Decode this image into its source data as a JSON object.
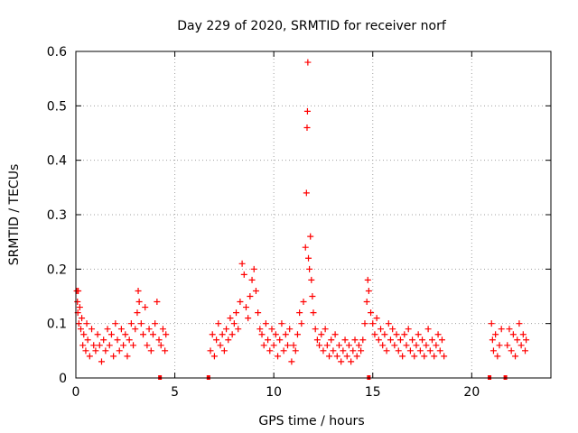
{
  "chart_data": {
    "type": "scatter",
    "title": "Day 229 of 2020, SRMTID for receiver norf",
    "xlabel": "GPS time / hours",
    "ylabel": "SRMTID / TECUs",
    "xlim": [
      0,
      24
    ],
    "ylim": [
      0,
      0.6
    ],
    "xticks": [
      0,
      5,
      10,
      15,
      20
    ],
    "yticks": [
      0,
      0.1,
      0.2,
      0.3,
      0.4,
      0.5,
      0.6
    ],
    "xtick_labels": [
      "0",
      "5",
      "10",
      "15",
      "20"
    ],
    "ytick_labels": [
      "0",
      "0.1",
      "0.2",
      "0.3",
      "0.4",
      "0.5",
      "0.6"
    ],
    "grid": true,
    "marker": "+",
    "marker_color": "#ff0000",
    "series": [
      {
        "name": "SRMTID",
        "points": [
          [
            0.05,
            0.16
          ],
          [
            0.08,
            0.14
          ],
          [
            0.1,
            0.12
          ],
          [
            0.12,
            0.16
          ],
          [
            0.15,
            0.1
          ],
          [
            0.2,
            0.13
          ],
          [
            0.25,
            0.09
          ],
          [
            0.3,
            0.11
          ],
          [
            0.35,
            0.06
          ],
          [
            0.4,
            0.08
          ],
          [
            0.5,
            0.05
          ],
          [
            0.55,
            0.1
          ],
          [
            0.6,
            0.07
          ],
          [
            0.7,
            0.04
          ],
          [
            0.8,
            0.09
          ],
          [
            0.9,
            0.06
          ],
          [
            1.0,
            0.05
          ],
          [
            1.1,
            0.08
          ],
          [
            1.2,
            0.06
          ],
          [
            1.3,
            0.03
          ],
          [
            1.4,
            0.07
          ],
          [
            1.5,
            0.05
          ],
          [
            1.6,
            0.09
          ],
          [
            1.7,
            0.06
          ],
          [
            1.8,
            0.08
          ],
          [
            1.9,
            0.04
          ],
          [
            2.0,
            0.1
          ],
          [
            2.1,
            0.07
          ],
          [
            2.2,
            0.05
          ],
          [
            2.3,
            0.09
          ],
          [
            2.4,
            0.06
          ],
          [
            2.5,
            0.08
          ],
          [
            2.6,
            0.04
          ],
          [
            2.7,
            0.07
          ],
          [
            2.8,
            0.1
          ],
          [
            2.9,
            0.06
          ],
          [
            3.0,
            0.09
          ],
          [
            3.1,
            0.12
          ],
          [
            3.15,
            0.16
          ],
          [
            3.2,
            0.14
          ],
          [
            3.3,
            0.1
          ],
          [
            3.4,
            0.08
          ],
          [
            3.5,
            0.13
          ],
          [
            3.6,
            0.06
          ],
          [
            3.7,
            0.09
          ],
          [
            3.8,
            0.05
          ],
          [
            3.9,
            0.08
          ],
          [
            4.0,
            0.1
          ],
          [
            4.1,
            0.14
          ],
          [
            4.2,
            0.07
          ],
          [
            4.3,
            0.06
          ],
          [
            4.4,
            0.09
          ],
          [
            4.5,
            0.05
          ],
          [
            4.55,
            0.08
          ],
          [
            4.25,
            0.0
          ],
          [
            6.7,
            0.0
          ],
          [
            6.8,
            0.05
          ],
          [
            6.9,
            0.08
          ],
          [
            7.0,
            0.04
          ],
          [
            7.1,
            0.07
          ],
          [
            7.2,
            0.1
          ],
          [
            7.3,
            0.06
          ],
          [
            7.4,
            0.08
          ],
          [
            7.5,
            0.05
          ],
          [
            7.6,
            0.09
          ],
          [
            7.7,
            0.07
          ],
          [
            7.8,
            0.11
          ],
          [
            7.9,
            0.08
          ],
          [
            8.0,
            0.1
          ],
          [
            8.1,
            0.12
          ],
          [
            8.2,
            0.09
          ],
          [
            8.3,
            0.14
          ],
          [
            8.4,
            0.21
          ],
          [
            8.5,
            0.19
          ],
          [
            8.6,
            0.13
          ],
          [
            8.7,
            0.11
          ],
          [
            8.8,
            0.15
          ],
          [
            8.9,
            0.18
          ],
          [
            9.0,
            0.2
          ],
          [
            9.1,
            0.16
          ],
          [
            9.2,
            0.12
          ],
          [
            9.3,
            0.09
          ],
          [
            9.4,
            0.08
          ],
          [
            9.5,
            0.06
          ],
          [
            9.6,
            0.1
          ],
          [
            9.7,
            0.07
          ],
          [
            9.8,
            0.05
          ],
          [
            9.9,
            0.09
          ],
          [
            10.0,
            0.06
          ],
          [
            10.1,
            0.08
          ],
          [
            10.2,
            0.04
          ],
          [
            10.3,
            0.07
          ],
          [
            10.4,
            0.1
          ],
          [
            10.5,
            0.05
          ],
          [
            10.6,
            0.08
          ],
          [
            10.7,
            0.06
          ],
          [
            10.8,
            0.09
          ],
          [
            10.9,
            0.03
          ],
          [
            11.0,
            0.06
          ],
          [
            11.1,
            0.05
          ],
          [
            11.2,
            0.08
          ],
          [
            11.3,
            0.12
          ],
          [
            11.4,
            0.1
          ],
          [
            11.5,
            0.14
          ],
          [
            11.6,
            0.24
          ],
          [
            11.65,
            0.34
          ],
          [
            11.68,
            0.46
          ],
          [
            11.7,
            0.49
          ],
          [
            11.72,
            0.58
          ],
          [
            11.75,
            0.22
          ],
          [
            11.8,
            0.2
          ],
          [
            11.85,
            0.26
          ],
          [
            11.9,
            0.18
          ],
          [
            11.95,
            0.15
          ],
          [
            12.0,
            0.12
          ],
          [
            12.1,
            0.09
          ],
          [
            12.2,
            0.07
          ],
          [
            12.3,
            0.06
          ],
          [
            12.4,
            0.08
          ],
          [
            12.5,
            0.05
          ],
          [
            12.6,
            0.09
          ],
          [
            12.7,
            0.06
          ],
          [
            12.8,
            0.04
          ],
          [
            12.9,
            0.07
          ],
          [
            13.0,
            0.05
          ],
          [
            13.1,
            0.08
          ],
          [
            13.2,
            0.04
          ],
          [
            13.3,
            0.06
          ],
          [
            13.4,
            0.03
          ],
          [
            13.5,
            0.05
          ],
          [
            13.6,
            0.07
          ],
          [
            13.7,
            0.04
          ],
          [
            13.8,
            0.06
          ],
          [
            13.9,
            0.03
          ],
          [
            14.0,
            0.05
          ],
          [
            14.1,
            0.07
          ],
          [
            14.2,
            0.04
          ],
          [
            14.3,
            0.06
          ],
          [
            14.4,
            0.05
          ],
          [
            14.5,
            0.07
          ],
          [
            14.6,
            0.1
          ],
          [
            14.7,
            0.14
          ],
          [
            14.75,
            0.18
          ],
          [
            14.8,
            0.16
          ],
          [
            14.9,
            0.12
          ],
          [
            15.0,
            0.1
          ],
          [
            15.1,
            0.08
          ],
          [
            15.2,
            0.11
          ],
          [
            15.3,
            0.07
          ],
          [
            15.4,
            0.09
          ],
          [
            15.5,
            0.06
          ],
          [
            15.6,
            0.08
          ],
          [
            15.7,
            0.05
          ],
          [
            15.8,
            0.1
          ],
          [
            15.9,
            0.07
          ],
          [
            16.0,
            0.09
          ],
          [
            16.1,
            0.06
          ],
          [
            16.2,
            0.08
          ],
          [
            16.3,
            0.05
          ],
          [
            16.4,
            0.07
          ],
          [
            16.5,
            0.04
          ],
          [
            16.6,
            0.08
          ],
          [
            16.7,
            0.06
          ],
          [
            16.8,
            0.09
          ],
          [
            16.9,
            0.05
          ],
          [
            17.0,
            0.07
          ],
          [
            17.1,
            0.04
          ],
          [
            17.2,
            0.06
          ],
          [
            17.3,
            0.08
          ],
          [
            17.4,
            0.05
          ],
          [
            17.5,
            0.07
          ],
          [
            17.6,
            0.04
          ],
          [
            17.7,
            0.06
          ],
          [
            17.8,
            0.09
          ],
          [
            17.9,
            0.05
          ],
          [
            18.0,
            0.07
          ],
          [
            18.1,
            0.04
          ],
          [
            18.2,
            0.06
          ],
          [
            18.3,
            0.08
          ],
          [
            18.4,
            0.05
          ],
          [
            18.5,
            0.07
          ],
          [
            18.6,
            0.04
          ],
          [
            14.8,
            0.0
          ],
          [
            20.9,
            0.0
          ],
          [
            21.0,
            0.1
          ],
          [
            21.05,
            0.07
          ],
          [
            21.1,
            0.05
          ],
          [
            21.2,
            0.08
          ],
          [
            21.3,
            0.04
          ],
          [
            21.4,
            0.06
          ],
          [
            21.5,
            0.09
          ],
          [
            21.7,
            0.0
          ],
          [
            21.8,
            0.06
          ],
          [
            21.9,
            0.09
          ],
          [
            22.0,
            0.05
          ],
          [
            22.1,
            0.08
          ],
          [
            22.2,
            0.04
          ],
          [
            22.3,
            0.07
          ],
          [
            22.4,
            0.1
          ],
          [
            22.5,
            0.06
          ],
          [
            22.6,
            0.08
          ],
          [
            22.7,
            0.05
          ],
          [
            22.75,
            0.07
          ]
        ]
      }
    ]
  }
}
